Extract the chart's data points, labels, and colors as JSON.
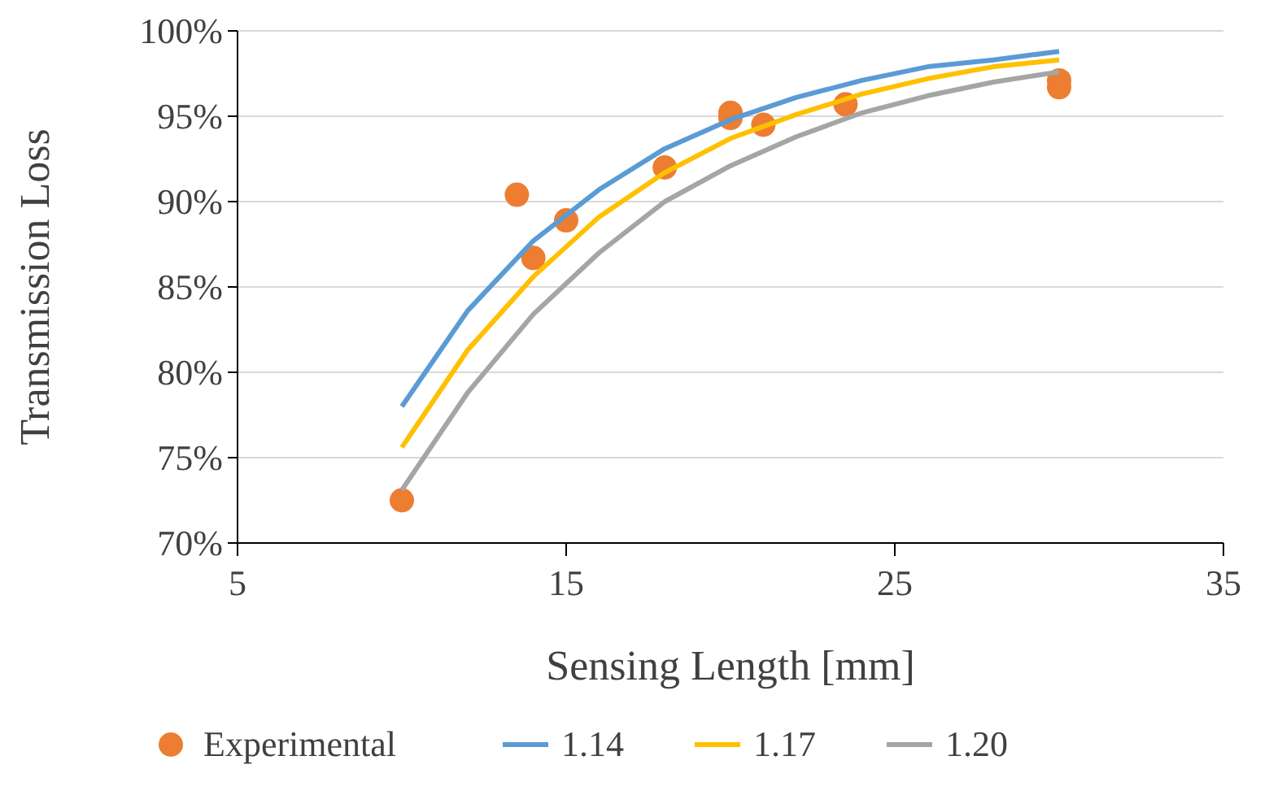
{
  "chart_data": {
    "type": "line",
    "xlabel": "Sensing Length [mm]",
    "ylabel": "Transmission Loss",
    "xlim": [
      5,
      35
    ],
    "xticks": [
      5,
      15,
      25,
      35
    ],
    "ylim": [
      70,
      100
    ],
    "yticks": [
      {
        "value": 70,
        "label": "70%"
      },
      {
        "value": 75,
        "label": "75%"
      },
      {
        "value": 80,
        "label": "80%"
      },
      {
        "value": 85,
        "label": "85%"
      },
      {
        "value": 90,
        "label": "90%"
      },
      {
        "value": 95,
        "label": "95%"
      },
      {
        "value": 100,
        "label": "100%"
      }
    ],
    "grid": "y",
    "legend": "bottom",
    "series": [
      {
        "name": "Experimental",
        "type": "scatter",
        "marker": "circle",
        "color": "#ed7d31",
        "x": [
          10,
          13.5,
          14,
          15,
          18,
          20,
          20,
          21,
          23.5,
          30,
          30
        ],
        "values": [
          72.5,
          90.4,
          86.7,
          88.9,
          92.0,
          95.2,
          94.9,
          94.5,
          95.7,
          97.1,
          96.7
        ]
      },
      {
        "name": "1.14",
        "color": "#5b9bd5",
        "x": [
          10,
          12,
          14,
          16,
          18,
          20,
          22,
          24,
          26,
          28,
          30
        ],
        "values": [
          78.0,
          83.6,
          87.7,
          90.7,
          93.1,
          94.8,
          96.1,
          97.1,
          97.9,
          98.3,
          98.8
        ]
      },
      {
        "name": "1.17",
        "color": "#ffc000",
        "x": [
          10,
          12,
          14,
          16,
          18,
          20,
          22,
          24,
          26,
          28,
          30
        ],
        "values": [
          75.6,
          81.3,
          85.6,
          89.1,
          91.7,
          93.7,
          95.1,
          96.3,
          97.2,
          97.9,
          98.3
        ]
      },
      {
        "name": "1.20",
        "color": "#a5a5a5",
        "x": [
          10,
          12,
          14,
          16,
          18,
          20,
          22,
          24,
          26,
          28,
          30
        ],
        "values": [
          73.1,
          78.8,
          83.4,
          87.0,
          90.0,
          92.1,
          93.8,
          95.2,
          96.2,
          97.0,
          97.6
        ]
      }
    ]
  }
}
